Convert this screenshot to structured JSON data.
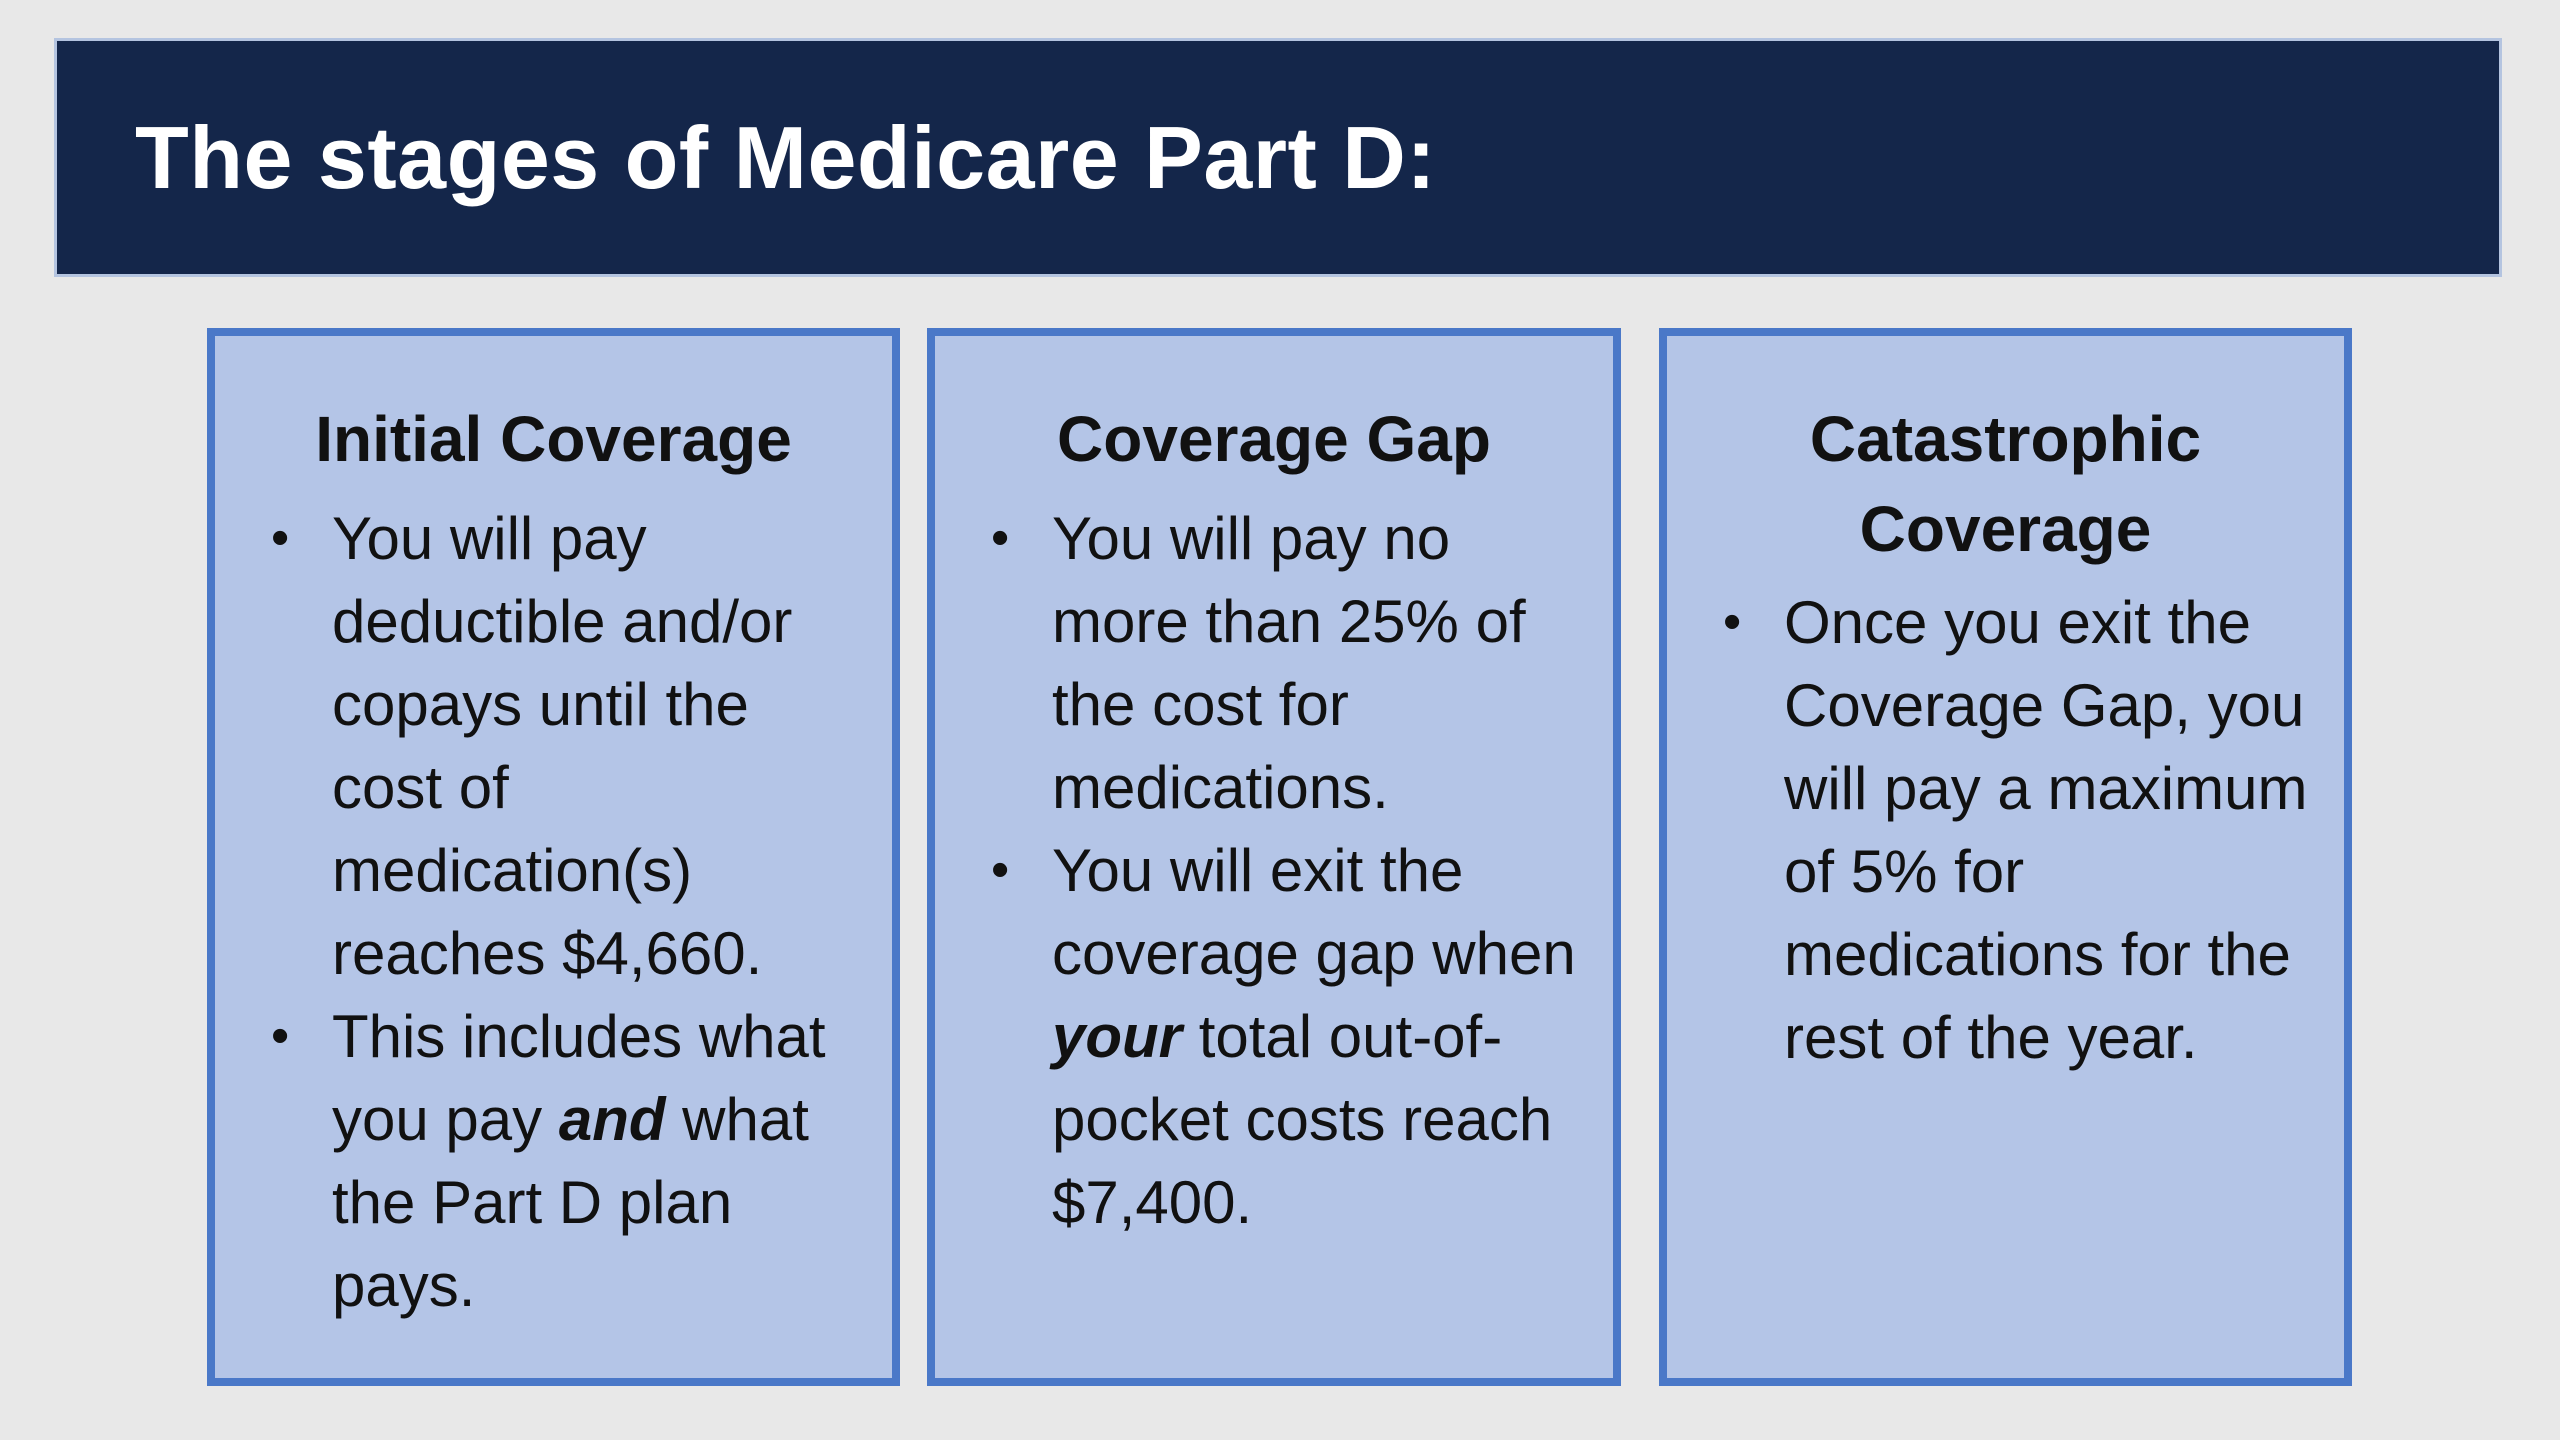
{
  "title": "The stages of Medicare Part D:",
  "stages": [
    {
      "heading": "Initial Coverage",
      "bullets": [
        {
          "text": "You will pay deductible and/or copays until the cost of medication(s) reaches $4,660."
        },
        {
          "before": "This includes what you pay ",
          "emph": "and",
          "after": " what the Part D plan pays."
        }
      ]
    },
    {
      "heading": "Coverage Gap",
      "bullets": [
        {
          "text": "You will pay no more than 25% of the cost for medications."
        },
        {
          "before": "You will exit the coverage gap when ",
          "emph": "your",
          "after": " total out-of-pocket costs reach $7,400."
        }
      ]
    },
    {
      "heading": "Catastrophic Coverage",
      "bullets": [
        {
          "text": "Once you exit the Coverage Gap, you will pay a maximum of 5% for medications for the rest of the year."
        }
      ]
    }
  ],
  "bullet_glyph": "•",
  "colors": {
    "title_background": "#14264a",
    "title_text": "#ffffff",
    "box_fill": "#b4c5e7",
    "box_border": "#4a78c8",
    "page_background": "#e8e8e8"
  }
}
